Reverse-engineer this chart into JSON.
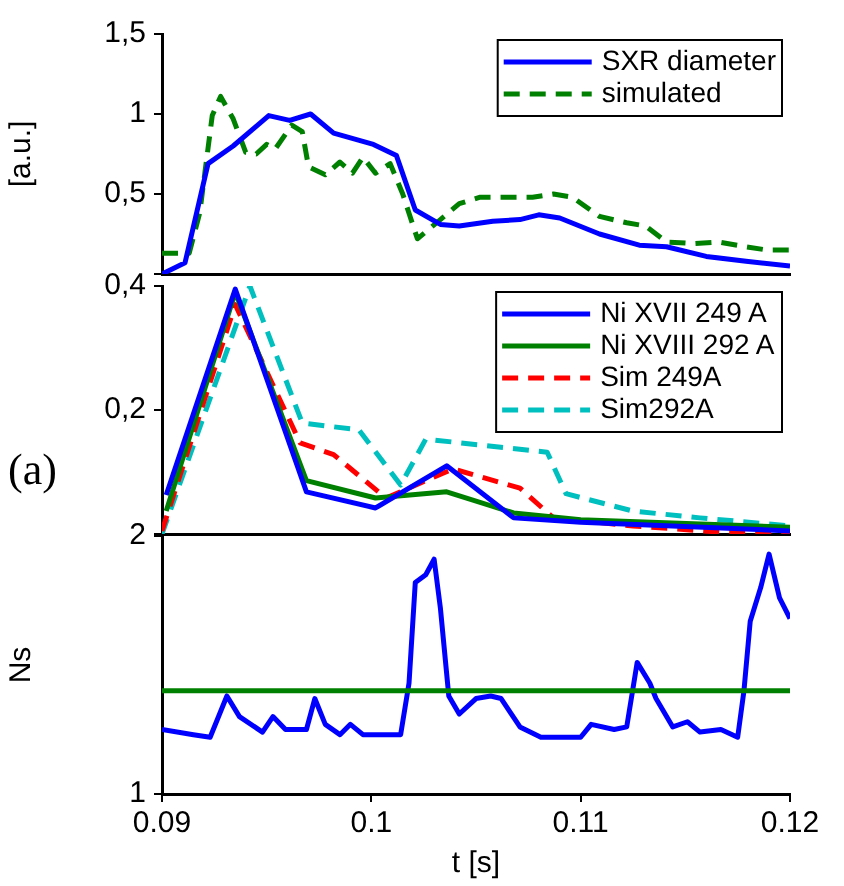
{
  "chart_data": [
    {
      "type": "line",
      "ylabel": "[a.u.]",
      "xlim": [
        0.09,
        0.12
      ],
      "xticks": [
        0.09,
        0.1,
        0.11,
        0.12
      ],
      "ylim": [
        0,
        1.5
      ],
      "yticks": [
        {
          "value": 0,
          "label": null
        },
        {
          "value": 0.5,
          "label": "0,5"
        },
        {
          "value": 1,
          "label": "1"
        },
        {
          "value": 1.5,
          "label": "1,5"
        }
      ],
      "tick_labels": "y",
      "legend": "top right",
      "marker": "none",
      "series": [
        {
          "name": "SXR diameter",
          "color": "#0000ff",
          "line_style": "solid",
          "x": [
            0.09,
            0.0911,
            0.0922,
            0.0934,
            0.0951,
            0.0961,
            0.0971,
            0.0982,
            0.1001,
            0.1012,
            0.1021,
            0.1033,
            0.1042,
            0.1058,
            0.1071,
            0.108,
            0.109,
            0.1109,
            0.1128,
            0.1141,
            0.116,
            0.1179,
            0.12
          ],
          "values": [
            0.0,
            0.07,
            0.69,
            0.8,
            0.99,
            0.96,
            1.0,
            0.88,
            0.81,
            0.74,
            0.4,
            0.31,
            0.3,
            0.33,
            0.34,
            0.37,
            0.35,
            0.25,
            0.18,
            0.17,
            0.11,
            0.08,
            0.05
          ]
        },
        {
          "name": "simulated",
          "color": "#008000",
          "line_style": "dashed",
          "x": [
            0.09,
            0.0913,
            0.0918,
            0.0924,
            0.0928,
            0.0934,
            0.094,
            0.0945,
            0.095,
            0.0954,
            0.0962,
            0.0967,
            0.097,
            0.0978,
            0.0985,
            0.0991,
            0.0996,
            0.1002,
            0.1009,
            0.1015,
            0.1018,
            0.1022,
            0.1033,
            0.1042,
            0.1052,
            0.1068,
            0.1077,
            0.1087,
            0.1096,
            0.1109,
            0.1122,
            0.1131,
            0.1141,
            0.1154,
            0.1166,
            0.1179,
            0.1189,
            0.12
          ],
          "values": [
            0.13,
            0.13,
            0.38,
            0.99,
            1.11,
            0.97,
            0.76,
            0.75,
            0.81,
            0.78,
            0.93,
            0.89,
            0.67,
            0.62,
            0.7,
            0.63,
            0.73,
            0.63,
            0.69,
            0.5,
            0.38,
            0.22,
            0.34,
            0.44,
            0.48,
            0.48,
            0.48,
            0.5,
            0.48,
            0.36,
            0.32,
            0.3,
            0.2,
            0.19,
            0.2,
            0.17,
            0.15,
            0.15
          ]
        }
      ]
    },
    {
      "type": "line",
      "xlim": [
        0.09,
        0.12
      ],
      "xticks": [
        0.09,
        0.1,
        0.11,
        0.12
      ],
      "ylim": [
        0,
        0.4
      ],
      "yticks": [
        {
          "value": 0,
          "label": null
        },
        {
          "value": 0.2,
          "label": "0,2"
        },
        {
          "value": 0.4,
          "label": "0,4"
        }
      ],
      "tick_labels": "y",
      "legend": "top right",
      "marker": "none",
      "annotations": [
        "(a)"
      ],
      "series": [
        {
          "name": "Ni XVII 249 A",
          "color": "#0000ff",
          "line_style": "solid",
          "x": [
            0.0902,
            0.0935,
            0.0969,
            0.1002,
            0.1036,
            0.1068,
            0.11,
            0.12
          ],
          "values": [
            0.063,
            0.395,
            0.068,
            0.042,
            0.11,
            0.026,
            0.019,
            0.005
          ]
        },
        {
          "name": "Ni XVIII 292 A",
          "color": "#008000",
          "line_style": "solid",
          "x": [
            0.0902,
            0.0935,
            0.0969,
            0.1002,
            0.1036,
            0.1068,
            0.11,
            0.12
          ],
          "values": [
            0.037,
            0.39,
            0.086,
            0.058,
            0.068,
            0.034,
            0.023,
            0.011
          ]
        },
        {
          "name": "Sim 249A",
          "color": "#ff0000",
          "line_style": "dashed",
          "x": [
            0.09,
            0.0935,
            0.0966,
            0.0982,
            0.1007,
            0.1039,
            0.1071,
            0.1087,
            0.1125,
            0.1167,
            0.12
          ],
          "values": [
            0.005,
            0.37,
            0.147,
            0.128,
            0.058,
            0.105,
            0.074,
            0.026,
            0.013,
            0.003,
            0.003
          ]
        },
        {
          "name": "Sim292A",
          "color": "#00bfbf",
          "line_style": "dashed",
          "x": [
            0.09,
            0.0942,
            0.0967,
            0.0994,
            0.1014,
            0.1026,
            0.1084,
            0.1093,
            0.1125,
            0.1157,
            0.12
          ],
          "values": [
            0.0,
            0.4,
            0.179,
            0.168,
            0.079,
            0.153,
            0.132,
            0.065,
            0.037,
            0.026,
            0.013
          ]
        }
      ]
    },
    {
      "type": "line",
      "xlabel": "t [s]",
      "ylabel": "Ns",
      "xlim": [
        0.09,
        0.12
      ],
      "xticks": [
        0.09,
        0.1,
        0.11,
        0.12
      ],
      "ylim": [
        1,
        2
      ],
      "yticks": [
        {
          "value": 1,
          "label": "1"
        },
        {
          "value": 2,
          "label": "2"
        }
      ],
      "marker": "none",
      "ref_lines": [
        {
          "axis": "y",
          "value": 1.4,
          "color": "#008000"
        }
      ],
      "series": [
        {
          "color": "#0000ff",
          "line_style": "solid",
          "x": [
            0.09,
            0.0915,
            0.0923,
            0.0931,
            0.0937,
            0.0948,
            0.0953,
            0.0959,
            0.0969,
            0.0973,
            0.0978,
            0.0985,
            0.099,
            0.0996,
            0.1014,
            0.1018,
            0.1021,
            0.1026,
            0.103,
            0.1033,
            0.1037,
            0.1042,
            0.105,
            0.1057,
            0.1062,
            0.1071,
            0.1081,
            0.11,
            0.1105,
            0.1116,
            0.1122,
            0.1127,
            0.1133,
            0.1136,
            0.1144,
            0.1151,
            0.1157,
            0.1167,
            0.1175,
            0.1178,
            0.1181,
            0.1186,
            0.119,
            0.1195,
            0.12
          ],
          "values": [
            1.25,
            1.23,
            1.22,
            1.38,
            1.3,
            1.24,
            1.3,
            1.25,
            1.25,
            1.37,
            1.27,
            1.23,
            1.27,
            1.23,
            1.23,
            1.43,
            1.82,
            1.85,
            1.91,
            1.72,
            1.38,
            1.31,
            1.37,
            1.38,
            1.37,
            1.26,
            1.22,
            1.22,
            1.27,
            1.25,
            1.26,
            1.51,
            1.43,
            1.37,
            1.26,
            1.28,
            1.24,
            1.25,
            1.22,
            1.4,
            1.67,
            1.8,
            1.93,
            1.76,
            1.68
          ]
        }
      ]
    }
  ]
}
